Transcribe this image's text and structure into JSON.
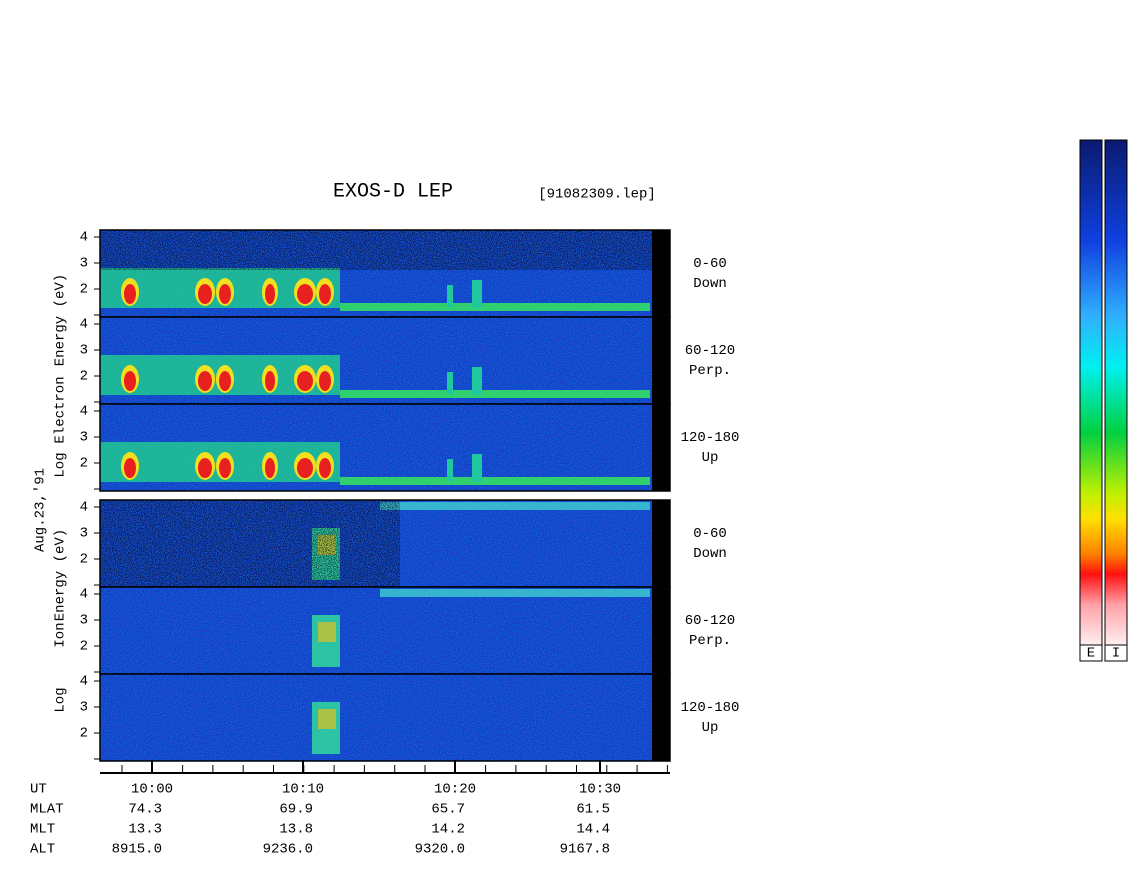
{
  "header": {
    "title": "EXOS-D LEP",
    "file": "[91082309.lep]"
  },
  "date": "Aug.23,'91",
  "groups": [
    {
      "axis_label": [
        "Log",
        "Electron",
        "Energy (eV)"
      ],
      "panels": [
        {
          "ticks": [
            2,
            3,
            4
          ],
          "label": [
            "0-60",
            "Down"
          ]
        },
        {
          "ticks": [
            2,
            3,
            4
          ],
          "label": [
            "60-120",
            "Perp."
          ]
        },
        {
          "ticks": [
            2,
            3,
            4
          ],
          "label": [
            "120-180",
            "Up"
          ]
        }
      ]
    },
    {
      "axis_label": [
        "Log",
        "Ion",
        "Energy (eV)"
      ],
      "panels": [
        {
          "ticks": [
            2,
            3,
            4
          ],
          "label": [
            "0-60",
            "Down"
          ]
        },
        {
          "ticks": [
            2,
            3,
            4
          ],
          "label": [
            "60-120",
            "Perp."
          ]
        },
        {
          "ticks": [
            2,
            3,
            4
          ],
          "label": [
            "120-180",
            "Up"
          ]
        }
      ]
    }
  ],
  "time_axis": {
    "ticks": [
      "10:00",
      "10:10",
      "10:20",
      "10:30"
    ]
  },
  "table": {
    "rows": [
      {
        "label": "UT",
        "values": []
      },
      {
        "label": "MLAT",
        "values": [
          "74.3",
          "69.9",
          "65.7",
          "61.5"
        ]
      },
      {
        "label": "MLT",
        "values": [
          "13.3",
          "13.8",
          "14.2",
          "14.4"
        ]
      },
      {
        "label": "ALT",
        "values": [
          "8915.0",
          "9236.0",
          "9320.0",
          "9167.8"
        ]
      }
    ]
  },
  "colorbar": {
    "labels": [
      "E",
      "I"
    ]
  }
}
